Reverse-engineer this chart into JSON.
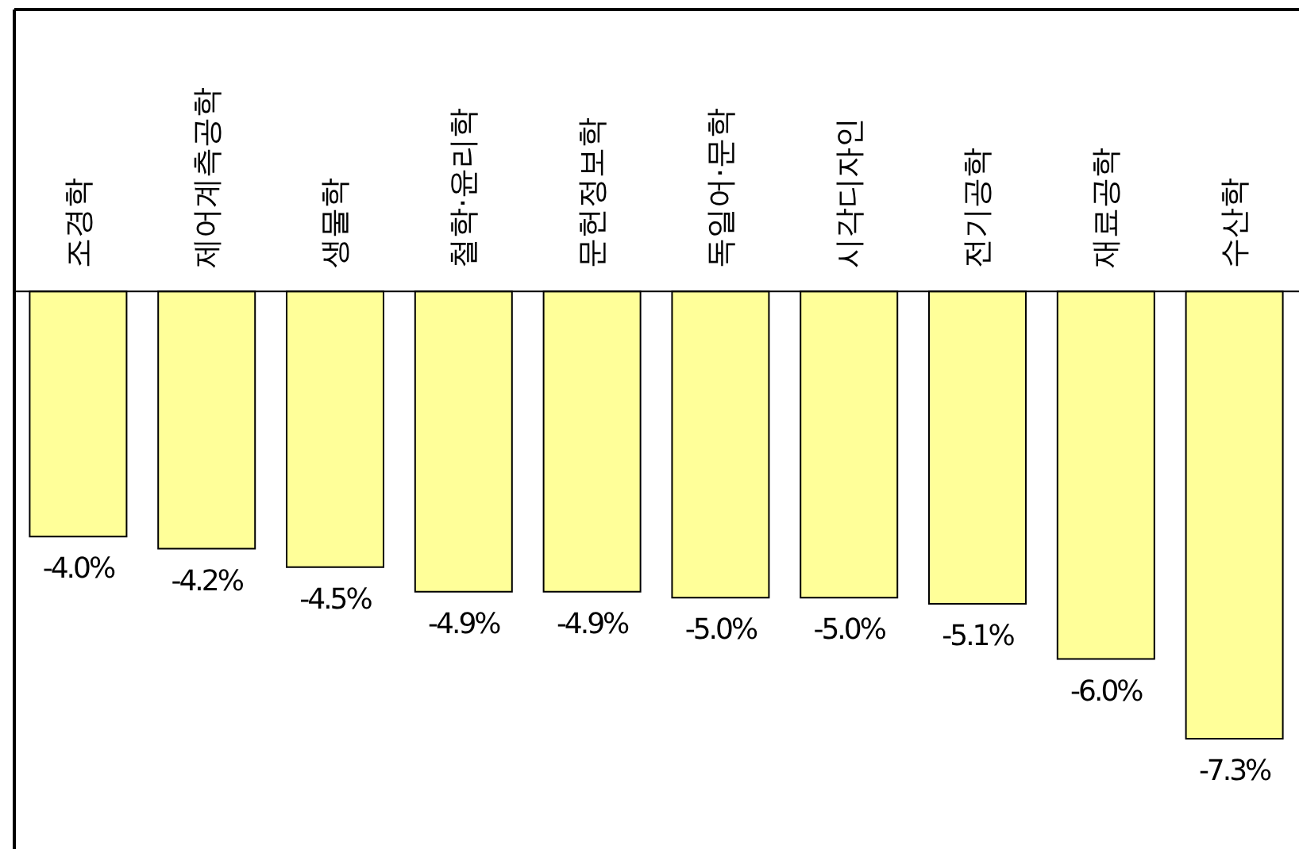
{
  "chart_data": {
    "type": "bar",
    "categories": [
      "조경학",
      "제어계측공학",
      "생물학",
      "철학·윤리학",
      "문헌정보학",
      "독일어·문학",
      "시각디자인",
      "전기공학",
      "재료공학",
      "수산학"
    ],
    "values": [
      -4.0,
      -4.2,
      -4.5,
      -4.9,
      -4.9,
      -5.0,
      -5.0,
      -5.1,
      -6.0,
      -7.3
    ],
    "value_labels": [
      "-4.0%",
      "-4.2%",
      "-4.5%",
      "-4.9%",
      "-4.9%",
      "-5.0%",
      "-5.0%",
      "-5.1%",
      "-6.0%",
      "-7.3%"
    ],
    "color": "#ffff99",
    "ylim": [
      -9.1,
      4.6
    ],
    "tick_labels": "x",
    "grid": false,
    "legend": false
  }
}
